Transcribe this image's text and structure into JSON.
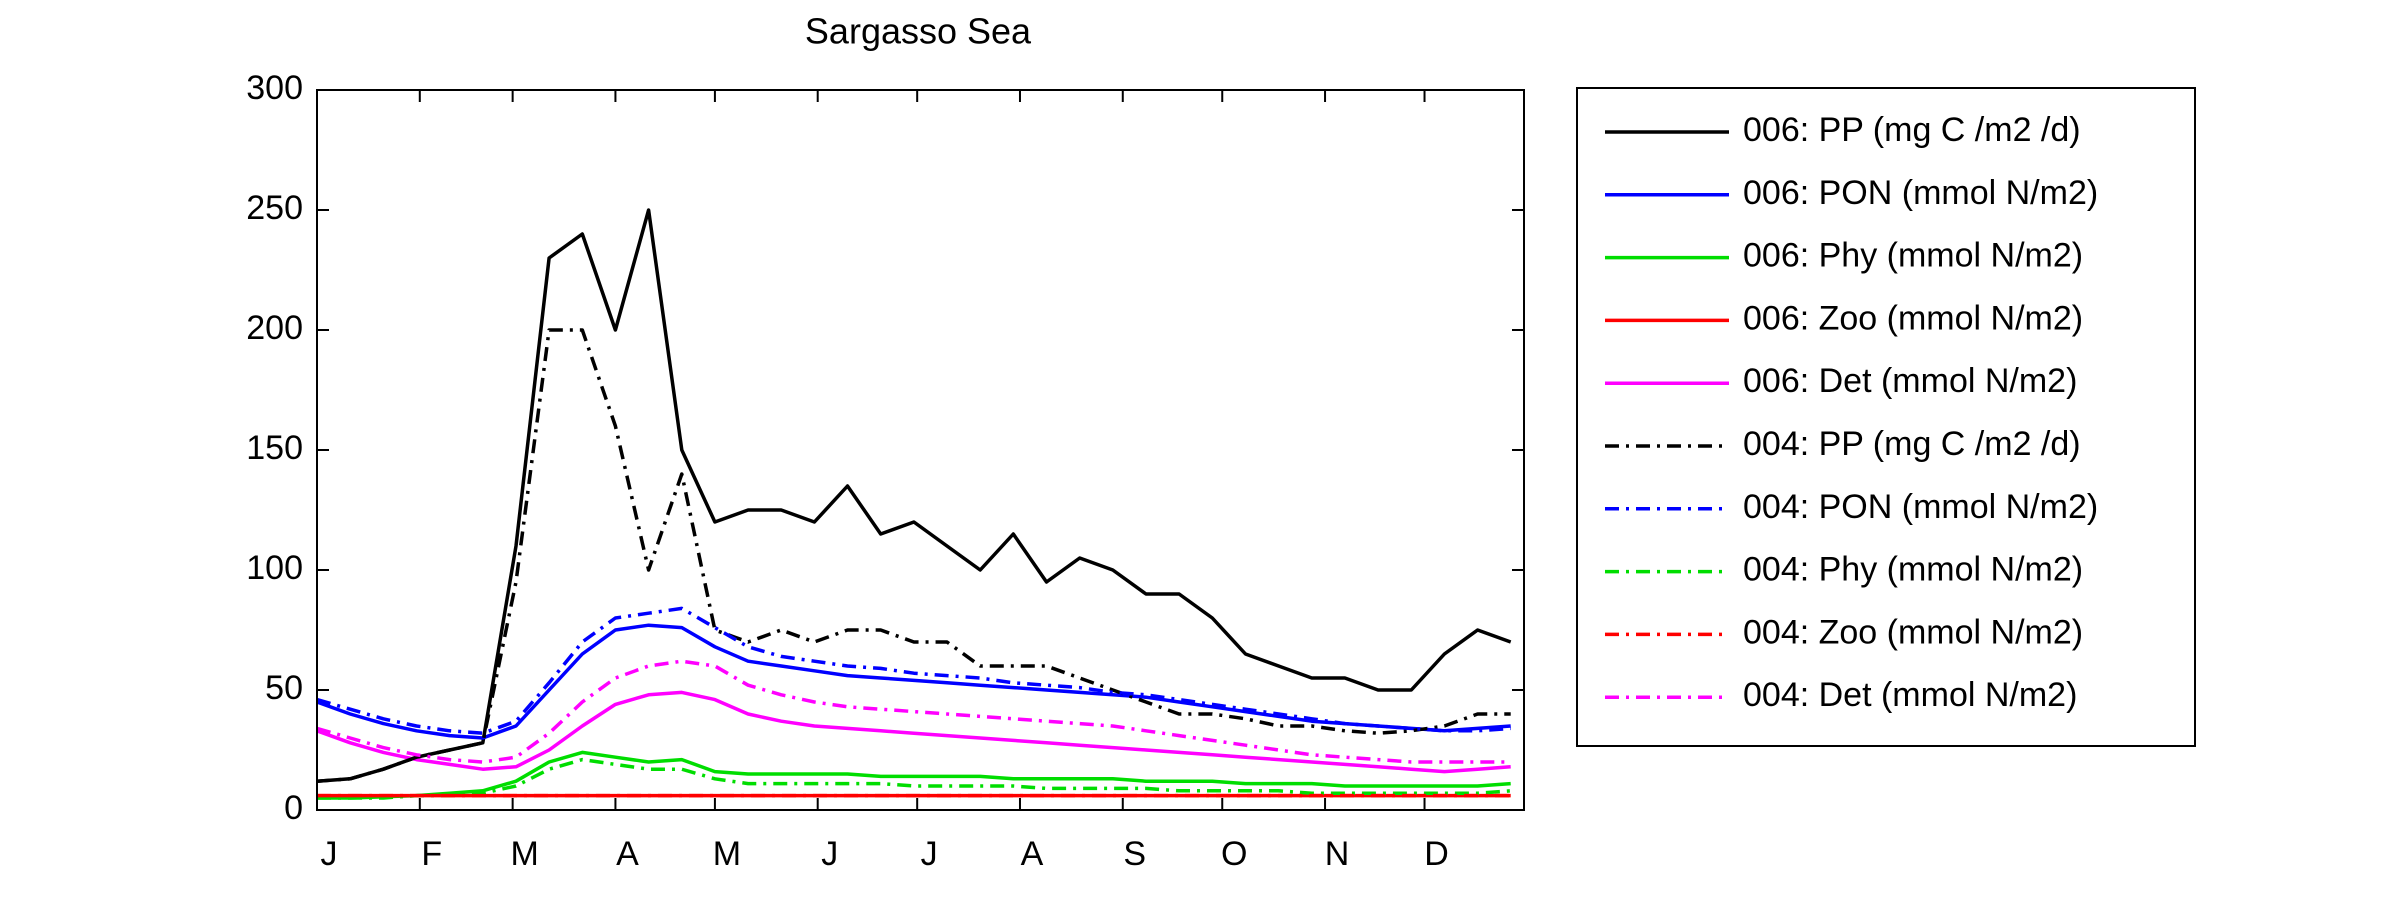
{
  "chart_data": {
    "type": "line",
    "title": "Sargasso Sea",
    "x": [
      1,
      11,
      21,
      31,
      41,
      51,
      61,
      71,
      81,
      91,
      101,
      111,
      121,
      131,
      141,
      151,
      161,
      171,
      181,
      191,
      201,
      211,
      221,
      231,
      241,
      251,
      261,
      271,
      281,
      291,
      301,
      311,
      321,
      331,
      341,
      351,
      361
    ],
    "xlim": [
      1,
      365
    ],
    "xticks": [
      {
        "value": 1,
        "label": "J"
      },
      {
        "value": 32,
        "label": "F"
      },
      {
        "value": 60,
        "label": "M"
      },
      {
        "value": 91,
        "label": "A"
      },
      {
        "value": 121,
        "label": "M"
      },
      {
        "value": 152,
        "label": "J"
      },
      {
        "value": 182,
        "label": "J"
      },
      {
        "value": 213,
        "label": "A"
      },
      {
        "value": 244,
        "label": "S"
      },
      {
        "value": 274,
        "label": "O"
      },
      {
        "value": 305,
        "label": "N"
      },
      {
        "value": 335,
        "label": "D"
      }
    ],
    "ylim": [
      0,
      300
    ],
    "yticks": [
      0,
      50,
      100,
      150,
      200,
      250,
      300
    ],
    "legend": "outside-right",
    "series": [
      {
        "name": "006: PP (mg C /m2 /d)",
        "color": "#000000",
        "linestyle": "solid",
        "values": [
          12,
          13,
          17,
          22,
          25,
          28,
          110,
          230,
          240,
          200,
          250,
          150,
          120,
          125,
          125,
          120,
          135,
          115,
          120,
          110,
          100,
          115,
          95,
          105,
          100,
          90,
          90,
          80,
          65,
          60,
          55,
          55,
          50,
          50,
          65,
          75,
          70
        ]
      },
      {
        "name": "006: PON (mmol N/m2)",
        "color": "#0000ff",
        "linestyle": "solid",
        "values": [
          45,
          40,
          36,
          33,
          31,
          30,
          35,
          50,
          65,
          75,
          77,
          76,
          68,
          62,
          60,
          58,
          56,
          55,
          54,
          53,
          52,
          51,
          50,
          49,
          48,
          47,
          45,
          43,
          41,
          39,
          37,
          36,
          35,
          34,
          33,
          34,
          35
        ]
      },
      {
        "name": "006: Phy (mmol N/m2)",
        "color": "#00dd00",
        "linestyle": "solid",
        "values": [
          5,
          5,
          5.5,
          6,
          7,
          8,
          12,
          20,
          24,
          22,
          20,
          21,
          16,
          15,
          15,
          15,
          15,
          14,
          14,
          14,
          14,
          13,
          13,
          13,
          13,
          12,
          12,
          12,
          11,
          11,
          11,
          10,
          10,
          10,
          10,
          10,
          11
        ]
      },
      {
        "name": "006: Zoo (mmol N/m2)",
        "color": "#ff0000",
        "linestyle": "solid",
        "values": [
          6,
          6,
          6,
          6,
          6,
          6,
          6,
          6,
          6,
          6,
          6,
          6,
          6,
          6,
          6,
          6,
          6,
          6,
          6,
          6,
          6,
          6,
          6,
          6,
          6,
          6,
          6,
          6,
          6,
          6,
          6,
          6,
          6,
          6,
          6,
          6,
          6
        ]
      },
      {
        "name": "006: Det (mmol N/m2)",
        "color": "#ff00ff",
        "linestyle": "solid",
        "values": [
          33,
          28,
          24,
          21,
          19,
          17,
          18,
          25,
          35,
          44,
          48,
          49,
          46,
          40,
          37,
          35,
          34,
          33,
          32,
          31,
          30,
          29,
          28,
          27,
          26,
          25,
          24,
          23,
          22,
          21,
          20,
          19,
          18,
          17,
          16,
          17,
          18
        ]
      },
      {
        "name": "004: PP (mg C /m2 /d)",
        "color": "#000000",
        "linestyle": "dashdot",
        "values": [
          12,
          13,
          17,
          22,
          25,
          28,
          95,
          200,
          200,
          160,
          100,
          140,
          75,
          70,
          75,
          70,
          75,
          75,
          70,
          70,
          60,
          60,
          60,
          55,
          50,
          45,
          40,
          40,
          38,
          35,
          35,
          33,
          32,
          33,
          35,
          40,
          40
        ]
      },
      {
        "name": "004: PON (mmol N/m2)",
        "color": "#0000ff",
        "linestyle": "dashdot",
        "values": [
          46,
          42,
          38,
          35,
          33,
          32,
          37,
          53,
          70,
          80,
          82,
          84,
          76,
          68,
          64,
          62,
          60,
          59,
          57,
          56,
          55,
          53,
          52,
          51,
          49,
          48,
          46,
          44,
          42,
          40,
          38,
          36,
          35,
          34,
          33,
          33,
          34
        ]
      },
      {
        "name": "004: Phy (mmol N/m2)",
        "color": "#00dd00",
        "linestyle": "dashdot",
        "values": [
          5,
          5,
          5,
          6,
          6,
          7,
          10,
          17,
          21,
          19,
          17,
          17,
          13,
          11,
          11,
          11,
          11,
          11,
          10,
          10,
          10,
          10,
          9,
          9,
          9,
          9,
          8,
          8,
          8,
          8,
          7,
          7,
          7,
          7,
          7,
          7,
          8
        ]
      },
      {
        "name": "004: Zoo (mmol N/m2)",
        "color": "#ff0000",
        "linestyle": "dashdot",
        "values": [
          6,
          6,
          6,
          6,
          6,
          6,
          6,
          6,
          6,
          6,
          6,
          6,
          6,
          6,
          6,
          6,
          6,
          6,
          6,
          6,
          6,
          6,
          6,
          6,
          6,
          6,
          6,
          6,
          6,
          6,
          6,
          6,
          6,
          6,
          6,
          6,
          6
        ]
      },
      {
        "name": "004: Det (mmol N/m2)",
        "color": "#ff00ff",
        "linestyle": "dashdot",
        "values": [
          34,
          30,
          26,
          23,
          21,
          20,
          22,
          32,
          45,
          55,
          60,
          62,
          60,
          52,
          48,
          45,
          43,
          42,
          41,
          40,
          39,
          38,
          37,
          36,
          35,
          33,
          31,
          29,
          27,
          25,
          23,
          22,
          21,
          20,
          20,
          20,
          20
        ]
      }
    ]
  }
}
